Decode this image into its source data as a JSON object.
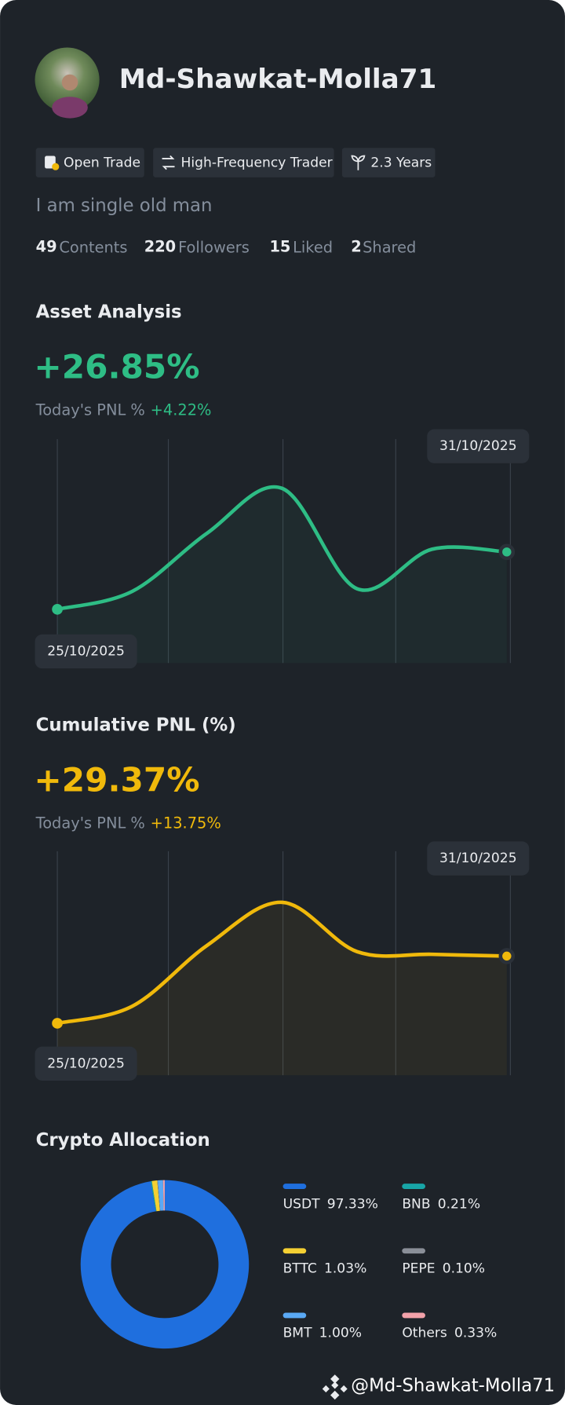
{
  "profile": {
    "name": "Md-Shawkat-Molla71",
    "tags": [
      "Open Trade",
      "High-Frequency Trader",
      "2.3 Years"
    ],
    "bio": "I am single old man",
    "stats": [
      {
        "value": 49,
        "label": "Contents"
      },
      {
        "value": 220,
        "label": "Followers"
      },
      {
        "value": 15,
        "label": "Liked"
      },
      {
        "value": 2,
        "label": "Shared"
      }
    ]
  },
  "chart_data": [
    {
      "type": "line",
      "title": "Asset Analysis",
      "headline": "+26.85%",
      "subtitle": "Today's PNL %",
      "change": "+4.22%",
      "categories": [
        "25/10/2025",
        null,
        null,
        null,
        null,
        null,
        "31/10/2025"
      ],
      "values": [
        60,
        80,
        145,
        195,
        83,
        127,
        124
      ],
      "color": "#2ebd85",
      "ylim": [
        0,
        250
      ]
    },
    {
      "type": "line",
      "title": "Cumulative PNL (%)",
      "headline": "+29.37%",
      "subtitle": "Today's PNL %",
      "change": "+13.75%",
      "categories": [
        "25/10/2025",
        null,
        null,
        null,
        null,
        null,
        "31/10/2025"
      ],
      "values": [
        58,
        77,
        145,
        193,
        138,
        135,
        133
      ],
      "color": "#f0b90b",
      "ylim": [
        0,
        250
      ]
    },
    {
      "type": "pie",
      "title": "Crypto Allocation",
      "categories": [
        "USDT",
        "BNB",
        "BTTC",
        "PEPE",
        "BMT",
        "Others"
      ],
      "values": [
        97.33,
        0.21,
        1.03,
        0.1,
        1.0,
        0.33
      ],
      "value_labels": [
        "97.33%",
        "0.21%",
        "1.03%",
        "0.10%",
        "1.00%",
        "0.33%"
      ],
      "colors": [
        "#1f6fde",
        "#18a5a7",
        "#f5d033",
        "#8a8f98",
        "#5aa9f5",
        "#f2a1a9"
      ]
    }
  ],
  "watermark": "@Md-Shawkat-Molla71"
}
